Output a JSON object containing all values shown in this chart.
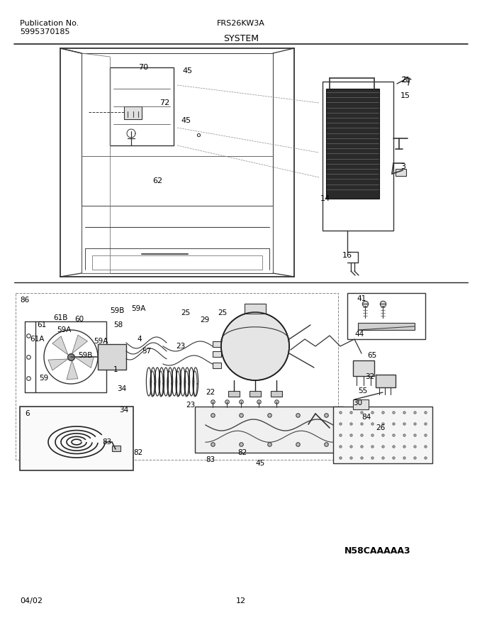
{
  "pub_no_label": "Publication No.",
  "pub_no_value": "5995370185",
  "model_title": "FRS26KW3A",
  "section_title": "SYSTEM",
  "date_code": "04/02",
  "page_number": "12",
  "catalog_code": "N58CAAAAA3",
  "bg_color": "#ffffff",
  "text_color": "#000000",
  "fig_width": 6.8,
  "fig_height": 8.71,
  "dpi": 100
}
